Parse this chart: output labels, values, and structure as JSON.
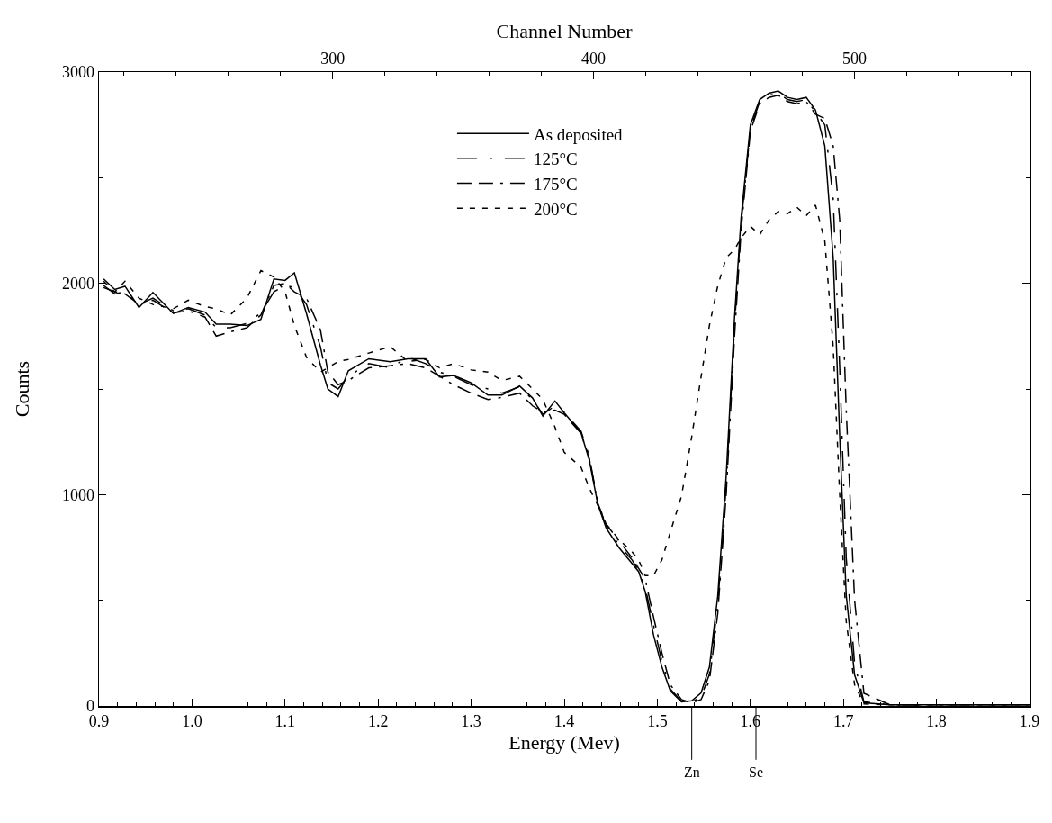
{
  "chart_data": {
    "type": "line",
    "xlabel": "Energy (Mev)",
    "ylabel": "Counts",
    "x2label": "Channel Number",
    "xlim": [
      0.9,
      1.9
    ],
    "xticks": [
      {
        "value": 0.9,
        "label": "0.9"
      },
      {
        "value": 1,
        "label": "1.0"
      },
      1.1,
      1.2,
      1.3,
      1.4,
      1.5,
      1.6,
      1.7,
      1.8,
      1.9
    ],
    "x2lim": [
      210.4,
      567.1
    ],
    "x2ticks": [
      300,
      400,
      500
    ],
    "ylim": [
      0,
      3000
    ],
    "yticks": [
      0,
      1000,
      2000,
      3000
    ],
    "grid": false,
    "legend": "top",
    "marker": "none",
    "x": [
      0.905,
      0.917,
      0.928,
      0.943,
      0.958,
      0.98,
      0.996,
      1.014,
      1.026,
      1.041,
      1.059,
      1.074,
      1.088,
      1.1,
      1.11,
      1.123,
      1.138,
      1.146,
      1.157,
      1.168,
      1.19,
      1.213,
      1.232,
      1.251,
      1.266,
      1.281,
      1.3,
      1.318,
      1.333,
      1.352,
      1.366,
      1.377,
      1.39,
      1.4,
      1.418,
      1.427,
      1.436,
      1.445,
      1.459,
      1.473,
      1.48,
      1.487,
      1.496,
      1.505,
      1.514,
      1.526,
      1.537,
      1.547,
      1.556,
      1.565,
      1.574,
      1.583,
      1.59,
      1.6,
      1.61,
      1.62,
      1.63,
      1.64,
      1.65,
      1.66,
      1.67,
      1.68,
      1.689,
      1.696,
      1.703,
      1.712,
      1.722,
      1.75,
      1.8,
      1.85,
      1.9
    ],
    "series": [
      {
        "name": "As deposited",
        "color": "#000000",
        "line_style": "solid",
        "values": [
          2021,
          1971,
          1986,
          1886,
          1957,
          1857,
          1886,
          1864,
          1807,
          1807,
          1800,
          1829,
          2021,
          2014,
          2050,
          1857,
          1614,
          1500,
          1464,
          1586,
          1643,
          1629,
          1643,
          1643,
          1557,
          1564,
          1529,
          1471,
          1471,
          1514,
          1457,
          1371,
          1443,
          1387,
          1293,
          1162,
          955,
          842,
          748,
          673,
          635,
          541,
          335,
          184,
          71,
          19,
          24,
          62,
          184,
          523,
          1087,
          1839,
          2309,
          2750,
          2870,
          2900,
          2910,
          2880,
          2870,
          2880,
          2820,
          2650,
          2121,
          1275,
          523,
          147,
          15,
          5,
          5,
          5,
          5
        ]
      },
      {
        "name": "125°C",
        "color": "#000000",
        "line_style": "dashdot",
        "values": [
          1990,
          1950,
          1960,
          1900,
          1930,
          1870,
          1880,
          1850,
          1790,
          1790,
          1810,
          1860,
          1960,
          1990,
          1980,
          1900,
          1700,
          1530,
          1500,
          1560,
          1620,
          1600,
          1650,
          1620,
          1580,
          1560,
          1520,
          1500,
          1480,
          1510,
          1450,
          1380,
          1420,
          1390,
          1300,
          1180,
          960,
          850,
          760,
          690,
          640,
          560,
          380,
          210,
          80,
          22,
          20,
          40,
          150,
          480,
          1040,
          1800,
          2280,
          2730,
          2860,
          2890,
          2900,
          2870,
          2860,
          2870,
          2810,
          2750,
          2400,
          1600,
          700,
          200,
          20,
          5,
          5,
          5,
          5
        ]
      },
      {
        "name": "175°C",
        "color": "#000000",
        "line_style": "longdashdot",
        "values": [
          1980,
          1960,
          1950,
          1900,
          1920,
          1860,
          1870,
          1840,
          1750,
          1770,
          1790,
          1850,
          1990,
          2000,
          1960,
          1930,
          1780,
          1580,
          1520,
          1540,
          1600,
          1610,
          1620,
          1600,
          1560,
          1520,
          1480,
          1450,
          1460,
          1480,
          1420,
          1390,
          1400,
          1380,
          1290,
          1170,
          960,
          860,
          780,
          700,
          650,
          600,
          420,
          250,
          100,
          30,
          15,
          30,
          120,
          440,
          1000,
          1750,
          2250,
          2720,
          2850,
          2880,
          2890,
          2860,
          2850,
          2860,
          2800,
          2780,
          2650,
          2300,
          1400,
          500,
          60,
          5,
          5,
          5,
          5
        ]
      },
      {
        "name": "200°C",
        "color": "#000000",
        "line_style": "dashed",
        "values": [
          2010,
          1960,
          2010,
          1930,
          1900,
          1880,
          1920,
          1890,
          1880,
          1850,
          1930,
          2060,
          2030,
          1960,
          1800,
          1650,
          1580,
          1600,
          1630,
          1640,
          1670,
          1700,
          1630,
          1640,
          1600,
          1620,
          1590,
          1580,
          1540,
          1560,
          1500,
          1450,
          1320,
          1200,
          1130,
          1030,
          950,
          861,
          786,
          729,
          690,
          617,
          617,
          692,
          823,
          993,
          1275,
          1557,
          1801,
          1989,
          2121,
          2160,
          2215,
          2270,
          2230,
          2300,
          2340,
          2330,
          2360,
          2320,
          2370,
          2200,
          1700,
          1000,
          400,
          100,
          10,
          5,
          5,
          5,
          5
        ]
      }
    ],
    "ref_lines": [
      {
        "axis": "x",
        "value": 1.537,
        "label": "Zn"
      },
      {
        "axis": "x",
        "value": 1.606,
        "label": "Se"
      }
    ]
  }
}
